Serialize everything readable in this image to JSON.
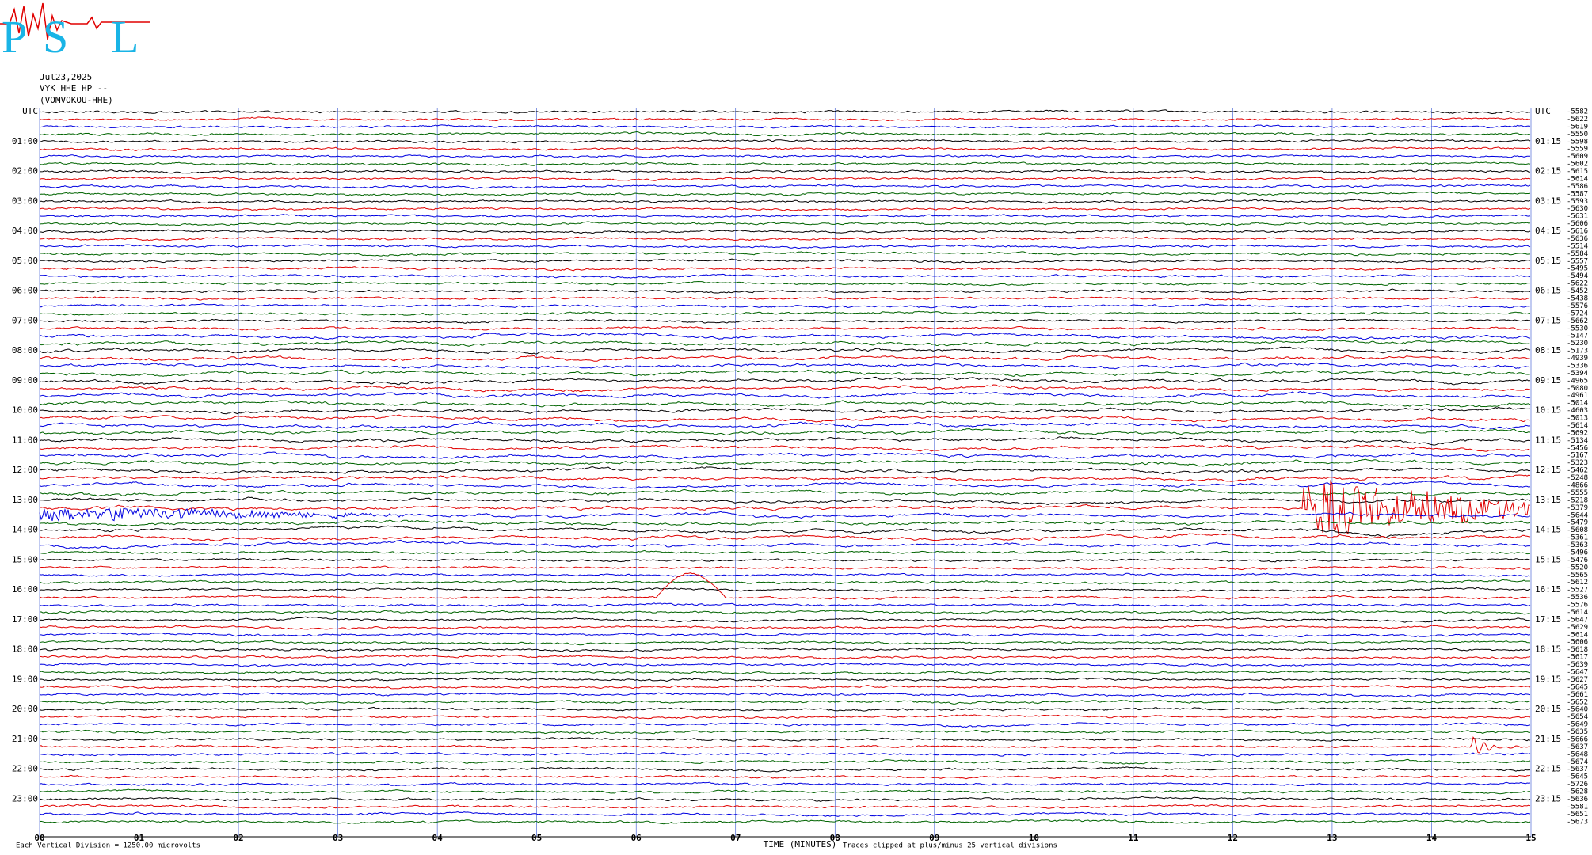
{
  "logo": {
    "letters": [
      "P",
      "S",
      "L"
    ]
  },
  "header": {
    "date": "Jul23,2025",
    "station": "VYK HHE HP --",
    "name": "(VOMVOKOU-HHE)"
  },
  "left_labels": [
    "UTC",
    "01:00",
    "02:00",
    "03:00",
    "04:00",
    "05:00",
    "06:00",
    "07:00",
    "08:00",
    "09:00",
    "10:00",
    "11:00",
    "12:00",
    "13:00",
    "14:00",
    "15:00",
    "16:00",
    "17:00",
    "18:00",
    "19:00",
    "20:00",
    "21:00",
    "22:00",
    "23:00"
  ],
  "right_labels": [
    "UTC",
    "01:15",
    "02:15",
    "03:15",
    "04:15",
    "05:15",
    "06:15",
    "07:15",
    "08:15",
    "09:15",
    "10:15",
    "11:15",
    "12:15",
    "13:15",
    "14:15",
    "15:15",
    "16:15",
    "17:15",
    "18:15",
    "19:15",
    "20:15",
    "21:15",
    "22:15",
    "23:15"
  ],
  "trace_offsets": [
    -5582,
    -5622,
    -5619,
    -5550,
    -5598,
    -5559,
    -5609,
    -5602,
    -5615,
    -5614,
    -5586,
    -5587,
    -5593,
    -5630,
    -5631,
    -5606,
    -5616,
    -5636,
    -5514,
    -5584,
    -5557,
    -5495,
    -5494,
    -5622,
    -5452,
    -5438,
    -5576,
    -5724,
    -5662,
    -5530,
    -5147,
    -5230,
    -5173,
    -4939,
    -5336,
    -5394,
    -4965,
    -5080,
    -4961,
    -5014,
    -4603,
    -5013,
    -5614,
    -5692,
    -5134,
    -5456,
    -5167,
    -5323,
    -5462,
    -5248,
    -4866,
    -5555,
    -5218,
    -5379,
    -5644,
    -5479,
    -5608,
    -5361,
    -5363,
    -5496,
    -5476,
    -5520,
    -5565,
    -5612,
    -5527,
    -5536,
    -5576,
    -5614,
    -5647,
    -5629,
    -5614,
    -5606,
    -5618,
    -5617,
    -5639,
    -5647,
    -5627,
    -5645,
    -5661,
    -5652,
    -5640,
    -5654,
    -5649,
    -5635,
    -5666,
    -5637,
    -5648,
    -5674,
    -5637,
    -5645,
    -5726,
    -5628,
    -5636,
    -5581,
    -5651,
    -5673
  ],
  "x_labels": [
    "00",
    "01",
    "02",
    "03",
    "04",
    "05",
    "06",
    "07",
    "08",
    "09",
    "10",
    "11",
    "12",
    "13",
    "14",
    "15"
  ],
  "x_axis_label": "TIME (MINUTES)",
  "footer_left": "Each Vertical Division = 1250.00 microvolts",
  "footer_right": "Traces clipped at plus/minus 25 vertical divisions",
  "trace_colors": [
    "#000000",
    "#e00000",
    "#0000e0",
    "#006400"
  ]
}
